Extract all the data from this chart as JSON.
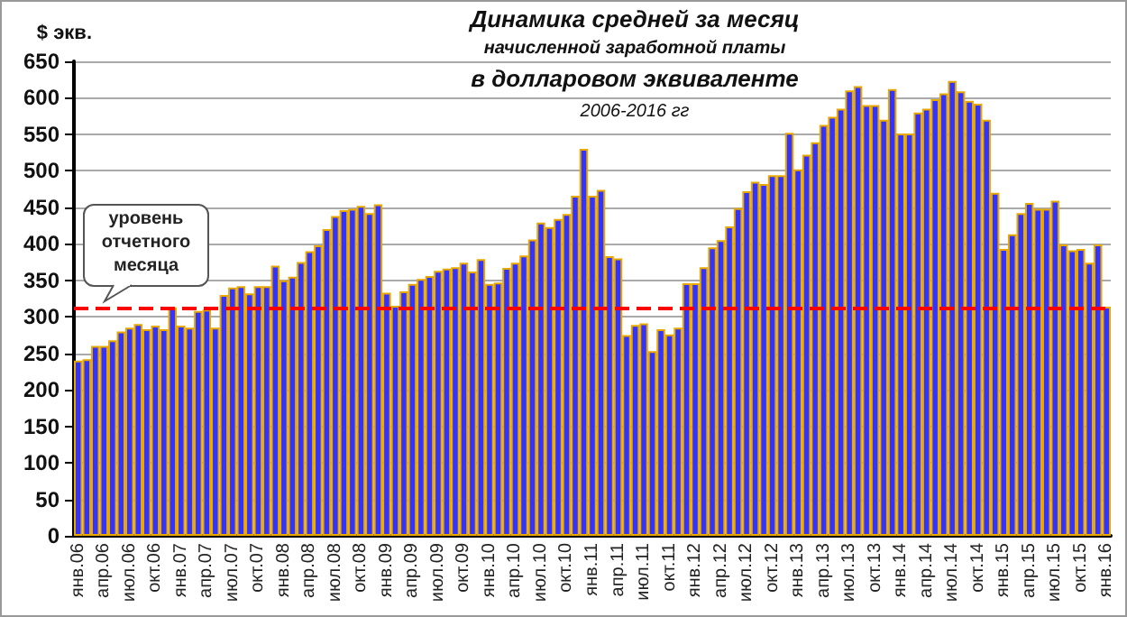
{
  "chart_data": {
    "type": "bar",
    "title": "Динамика средней за месяц",
    "subtitle": "начисленной заработной платы",
    "annotations": [
      "в долларовом эквиваленте",
      "2006-2016 гг"
    ],
    "ylabel": "$ экв.",
    "categories": [
      "янв.06",
      null,
      null,
      "апр.06",
      null,
      null,
      "июл.06",
      null,
      null,
      "окт.06",
      null,
      null,
      "янв.07",
      null,
      null,
      "апр.07",
      null,
      null,
      "июл.07",
      null,
      null,
      "окт.07",
      null,
      null,
      "янв.08",
      null,
      null,
      "апр.08",
      null,
      null,
      "июл.08",
      null,
      null,
      "окт.08",
      null,
      null,
      "янв.09",
      null,
      null,
      "апр.09",
      null,
      null,
      "июл.09",
      null,
      null,
      "окт.09",
      null,
      null,
      "янв.10",
      null,
      null,
      "апр.10",
      null,
      null,
      "июл.10",
      null,
      null,
      "окт.10",
      null,
      null,
      "янв.11",
      null,
      null,
      "апр.11",
      null,
      null,
      "июл.11",
      null,
      null,
      "окт.11",
      null,
      null,
      "янв.12",
      null,
      null,
      "апр.12",
      null,
      null,
      "июл.12",
      null,
      null,
      "окт.12",
      null,
      null,
      "янв.13",
      null,
      null,
      "апр.13",
      null,
      null,
      "июл.13",
      null,
      null,
      "окт.13",
      null,
      null,
      "янв.14",
      null,
      null,
      "апр.14",
      null,
      null,
      "июл.14",
      null,
      null,
      "окт.14",
      null,
      null,
      "янв.15",
      null,
      null,
      "апр.15",
      null,
      null,
      "июл.15",
      null,
      null,
      "окт.15",
      null,
      null,
      "янв.16"
    ],
    "series": [
      {
        "color": "#3333ff",
        "values": [
          240,
          242,
          260,
          260,
          268,
          280,
          285,
          290,
          283,
          288,
          283,
          313,
          288,
          285,
          308,
          310,
          285,
          330,
          340,
          342,
          332,
          342,
          342,
          370,
          350,
          355,
          375,
          390,
          398,
          420,
          438,
          446,
          448,
          452,
          442,
          454,
          333,
          315,
          335,
          345,
          352,
          356,
          363,
          366,
          368,
          374,
          362,
          379,
          345,
          347,
          367,
          374,
          384,
          406,
          429,
          423,
          434,
          441,
          466,
          530,
          466,
          474,
          383,
          380,
          275,
          289,
          291,
          253,
          283,
          276,
          285,
          346,
          346,
          368,
          395,
          405,
          424,
          449,
          472,
          485,
          482,
          494,
          494,
          552,
          502,
          522,
          539,
          563,
          574,
          585,
          610,
          616,
          590,
          590,
          570,
          612,
          551,
          551,
          580,
          585,
          598,
          606,
          623,
          609,
          596,
          592,
          570,
          470,
          393,
          413,
          442,
          456,
          448,
          448,
          459,
          399,
          391,
          393,
          374,
          399,
          314
        ]
      }
    ],
    "ylim": [
      0,
      650
    ],
    "yticks": [
      0,
      50,
      100,
      150,
      200,
      250,
      300,
      350,
      400,
      450,
      500,
      550,
      600,
      650
    ],
    "grid": "y",
    "ref_lines": [
      {
        "axis": "y",
        "value": 313,
        "label": "уровень отчетного месяца",
        "color": "#ff0000",
        "line_style": "dashed"
      }
    ]
  }
}
